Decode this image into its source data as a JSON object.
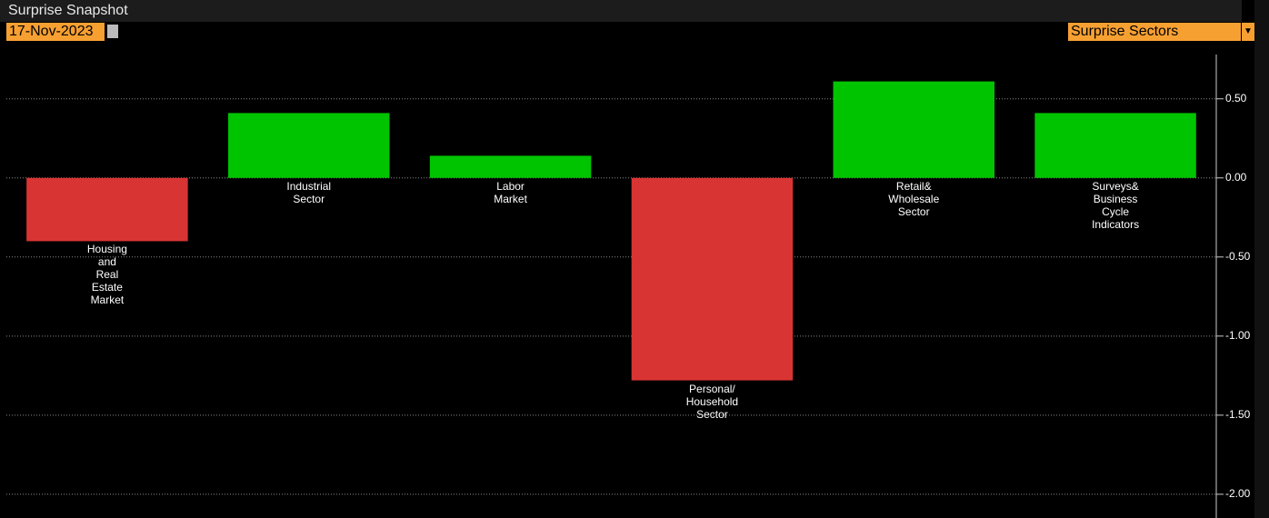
{
  "header": {
    "title": "Surprise Snapshot",
    "date": "17-Nov-2023",
    "dropdown": "Surprise Sectors"
  },
  "chart_data": {
    "type": "bar",
    "categories": [
      "Housing and Real Estate Market",
      "Industrial Sector",
      "Labor Market",
      "Personal/ Household Sector",
      "Retail& Wholesale Sector",
      "Surveys& Business Cycle Indicators"
    ],
    "values": [
      -0.4,
      0.41,
      0.14,
      -1.28,
      0.61,
      0.41
    ],
    "colors": [
      "#d93434",
      "#00c400",
      "#00c400",
      "#d93434",
      "#00c400",
      "#00c400"
    ],
    "ylim": [
      -2.15,
      0.78
    ],
    "yticks": [
      {
        "value": 0.5,
        "label": "0.50"
      },
      {
        "value": 0,
        "label": "0.00"
      },
      {
        "value": -0.5,
        "label": "-0.50"
      },
      {
        "value": -1,
        "label": "-1.00"
      },
      {
        "value": -1.5,
        "label": "-1.50"
      },
      {
        "value": -2,
        "label": "-2.00"
      }
    ],
    "grid": true
  }
}
